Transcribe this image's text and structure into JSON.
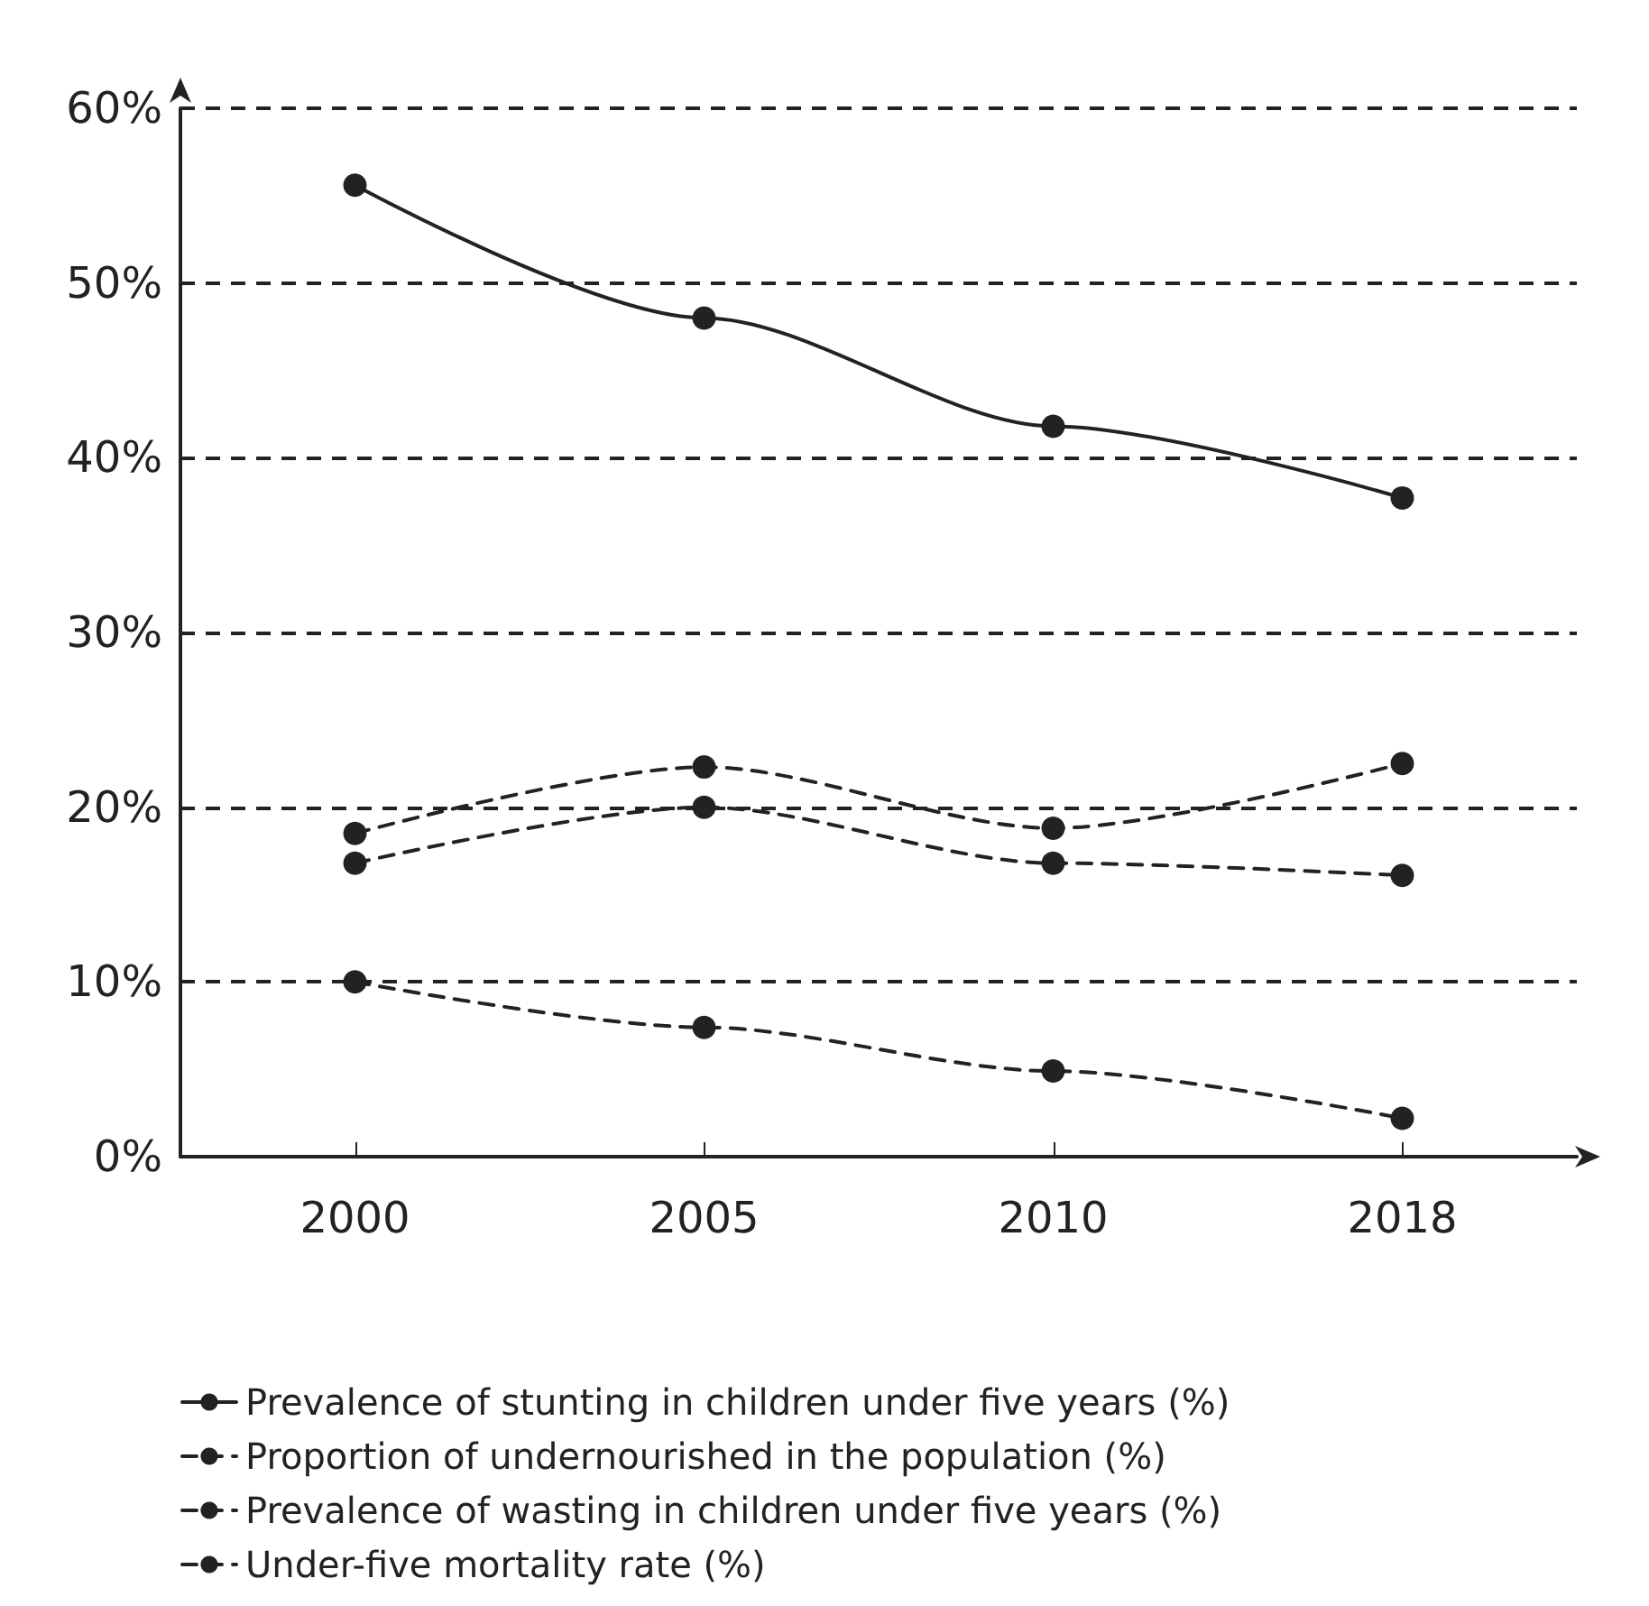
{
  "chart_data": {
    "type": "line",
    "categories": [
      "2000",
      "2005",
      "2010",
      "2018"
    ],
    "series": [
      {
        "name": "Prevalence of stunting in children under five years (%)",
        "color": "#222222",
        "line_style": "solid",
        "values": [
          55.6,
          48.0,
          41.8,
          37.7
        ]
      },
      {
        "name": "Proportion of undernourished in the population (%)",
        "color": "#222222",
        "line_style": "dashed",
        "values": [
          18.5,
          22.3,
          18.8,
          22.5
        ]
      },
      {
        "name": "Prevalence of wasting in children under five years (%)",
        "color": "#222222",
        "line_style": "dashed",
        "values": [
          16.8,
          20.0,
          16.8,
          16.1
        ]
      },
      {
        "name": "Under-five mortality rate (%)",
        "color": "#222222",
        "line_style": "dashed",
        "values": [
          10.0,
          7.4,
          4.9,
          2.2
        ]
      }
    ],
    "ylim": [
      0,
      60
    ],
    "yticks": [
      {
        "value": 0,
        "label": "0%"
      },
      {
        "value": 10,
        "label": "10%"
      },
      {
        "value": 20,
        "label": "20%"
      },
      {
        "value": 30,
        "label": "30%"
      },
      {
        "value": 40,
        "label": "40%"
      },
      {
        "value": 50,
        "label": "50%"
      },
      {
        "value": 60,
        "label": "60%"
      }
    ],
    "grid": "y",
    "legend": "bottom",
    "marker": "circle"
  }
}
